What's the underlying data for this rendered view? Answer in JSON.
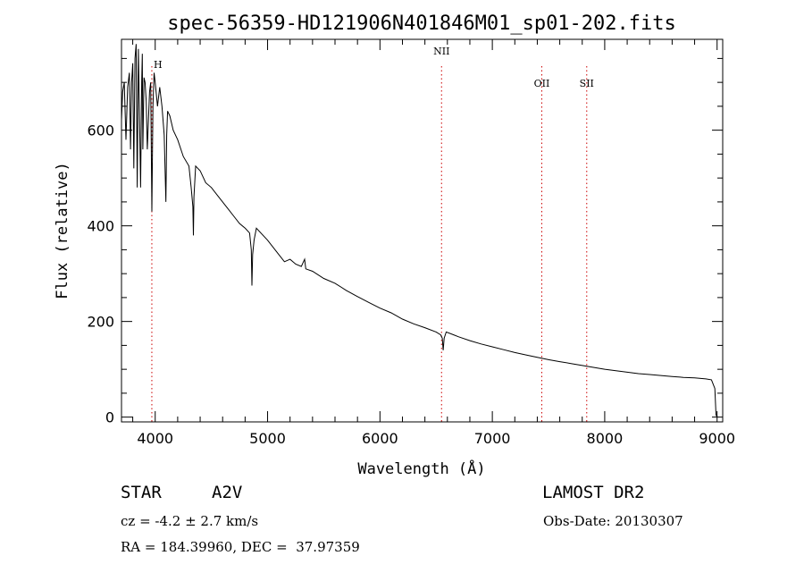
{
  "chart_data": {
    "type": "line",
    "title": "spec-56359-HD121906N401846M01_sp01-202.fits",
    "xlabel": "Wavelength (Å)",
    "ylabel": "Flux (relative)",
    "xlim": [
      3700,
      9050
    ],
    "ylim": [
      -10,
      790
    ],
    "x_ticks": [
      4000,
      5000,
      6000,
      7000,
      8000,
      9000
    ],
    "y_ticks": [
      0,
      200,
      400,
      600
    ],
    "grid": false,
    "line_color": "#000000",
    "marker_color": "#cc0000",
    "line_markers": [
      {
        "label": "H",
        "x": 3970
      },
      {
        "label": "NII",
        "x": 6548
      },
      {
        "label": "OII",
        "x": 7440
      },
      {
        "label": "SII",
        "x": 7840
      }
    ],
    "series": [
      {
        "x": [
          3700,
          3710,
          3725,
          3740,
          3755,
          3770,
          3780,
          3790,
          3800,
          3810,
          3820,
          3830,
          3840,
          3850,
          3860,
          3870,
          3880,
          3885,
          3890,
          3900,
          3910,
          3920,
          3930,
          3950,
          3960,
          3970,
          3980,
          3990,
          4000,
          4020,
          4040,
          4060,
          4080,
          4095,
          4102,
          4110,
          4130,
          4160,
          4200,
          4250,
          4300,
          4320,
          4335,
          4340,
          4345,
          4360,
          4400,
          4450,
          4500,
          4550,
          4600,
          4650,
          4700,
          4750,
          4800,
          4840,
          4855,
          4861,
          4867,
          4880,
          4900,
          5000,
          5100,
          5150,
          5200,
          5250,
          5300,
          5330,
          5340,
          5400,
          5500,
          5600,
          5700,
          5800,
          5900,
          6000,
          6100,
          6200,
          6300,
          6400,
          6500,
          6540,
          6555,
          6563,
          6571,
          6590,
          6700,
          6800,
          6900,
          7000,
          7100,
          7200,
          7300,
          7400,
          7500,
          7600,
          7700,
          7800,
          7900,
          8000,
          8100,
          8200,
          8300,
          8400,
          8500,
          8600,
          8700,
          8800,
          8900,
          8950,
          8980,
          8990,
          9000
        ],
        "y": [
          620,
          680,
          700,
          580,
          690,
          720,
          560,
          700,
          740,
          520,
          750,
          780,
          480,
          770,
          640,
          480,
          700,
          760,
          560,
          710,
          700,
          660,
          560,
          680,
          700,
          430,
          650,
          720,
          700,
          650,
          690,
          650,
          590,
          450,
          590,
          640,
          630,
          600,
          580,
          545,
          525,
          480,
          440,
          380,
          460,
          525,
          515,
          490,
          480,
          465,
          450,
          435,
          420,
          405,
          395,
          385,
          350,
          275,
          340,
          370,
          395,
          370,
          340,
          325,
          330,
          320,
          315,
          330,
          310,
          305,
          290,
          280,
          265,
          252,
          240,
          228,
          218,
          205,
          195,
          187,
          178,
          172,
          165,
          140,
          165,
          178,
          168,
          160,
          153,
          147,
          141,
          135,
          130,
          125,
          120,
          116,
          112,
          108,
          104,
          100,
          97,
          94,
          91,
          89,
          87,
          85,
          83,
          82,
          80,
          78,
          60,
          5,
          0
        ]
      }
    ]
  },
  "info": {
    "object_type": "STAR",
    "spectral_class": "A2V",
    "survey": "LAMOST DR2",
    "cz_text": "cz = -4.2 ± 2.7 km/s",
    "obs_date": "Obs-Date: 20130307",
    "coords": "RA = 184.39960, DEC =  37.97359"
  }
}
